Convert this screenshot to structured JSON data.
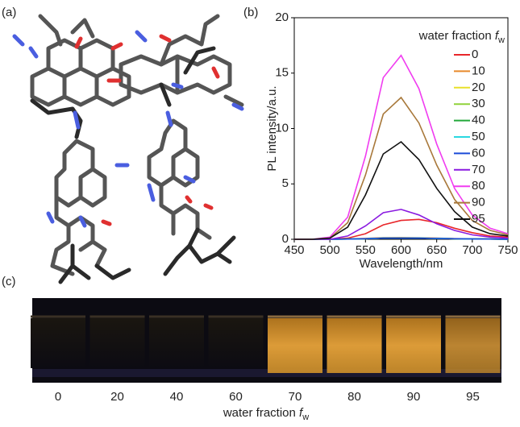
{
  "panel_labels": [
    "(a)",
    "(b)",
    "(c)"
  ],
  "chart_data": {
    "type": "line",
    "xlabel": "Wavelength/nm",
    "ylabel": "PL intensity/a.u.",
    "legend_title": {
      "text": "water fraction",
      "symbol": "f",
      "subscript": "w"
    },
    "legend": "upper right",
    "x": [
      450,
      475,
      500,
      525,
      550,
      575,
      600,
      625,
      650,
      675,
      700,
      725,
      750
    ],
    "xlim": [
      450,
      750
    ],
    "xticks": [
      450,
      500,
      550,
      600,
      650,
      700,
      750
    ],
    "ylim": [
      0,
      20
    ],
    "yticks": [
      0,
      5,
      10,
      15,
      20
    ],
    "series": [
      {
        "name": "0",
        "color": "#e8262a",
        "values": [
          0,
          0,
          0,
          0.1,
          0.5,
          1.3,
          1.7,
          1.8,
          1.5,
          1.0,
          0.6,
          0.3,
          0.2
        ]
      },
      {
        "name": "10",
        "color": "#e8892a",
        "values": [
          0,
          0,
          0,
          0.03,
          0.08,
          0.14,
          0.15,
          0.13,
          0.1,
          0.06,
          0.04,
          0.02,
          0.01
        ]
      },
      {
        "name": "20",
        "color": "#e8e02a",
        "values": [
          0,
          0,
          0,
          0.02,
          0.05,
          0.1,
          0.1,
          0.1,
          0.08,
          0.05,
          0.03,
          0.02,
          0.01
        ]
      },
      {
        "name": "30",
        "color": "#8fd23a",
        "values": [
          0,
          0,
          0,
          0.02,
          0.05,
          0.1,
          0.1,
          0.1,
          0.08,
          0.05,
          0.03,
          0.02,
          0.01
        ]
      },
      {
        "name": "40",
        "color": "#22a83a",
        "values": [
          0,
          0,
          0,
          0.02,
          0.05,
          0.1,
          0.1,
          0.1,
          0.08,
          0.05,
          0.03,
          0.02,
          0.01
        ]
      },
      {
        "name": "50",
        "color": "#2ad8e0",
        "values": [
          0,
          0,
          0,
          0.02,
          0.05,
          0.1,
          0.1,
          0.1,
          0.08,
          0.05,
          0.03,
          0.02,
          0.01
        ]
      },
      {
        "name": "60",
        "color": "#1a4ad8",
        "values": [
          0,
          0,
          0,
          0.02,
          0.05,
          0.1,
          0.1,
          0.1,
          0.08,
          0.05,
          0.03,
          0.02,
          0.01
        ]
      },
      {
        "name": "70",
        "color": "#8a1ae0",
        "values": [
          0,
          0,
          0,
          0.3,
          1.2,
          2.4,
          2.7,
          2.2,
          1.4,
          0.8,
          0.4,
          0.2,
          0.1
        ]
      },
      {
        "name": "80",
        "color": "#f03cf0",
        "values": [
          0,
          0,
          0.2,
          2.0,
          7.5,
          14.6,
          16.6,
          13.6,
          8.6,
          4.6,
          2.2,
          1.0,
          0.5
        ]
      },
      {
        "name": "90",
        "color": "#a8783a",
        "values": [
          0,
          0,
          0.1,
          1.5,
          5.8,
          11.3,
          12.8,
          10.5,
          6.7,
          3.6,
          1.7,
          0.8,
          0.4
        ]
      },
      {
        "name": "95",
        "color": "#111111",
        "values": [
          0,
          0,
          0.1,
          1.1,
          4.0,
          7.7,
          8.8,
          7.2,
          4.6,
          2.5,
          1.1,
          0.5,
          0.3
        ]
      }
    ]
  },
  "photo": {
    "labels": [
      "0",
      "20",
      "40",
      "60",
      "70",
      "80",
      "90",
      "95"
    ],
    "xlabel": {
      "text": "water fraction",
      "symbol": "f",
      "subscript": "w"
    }
  }
}
